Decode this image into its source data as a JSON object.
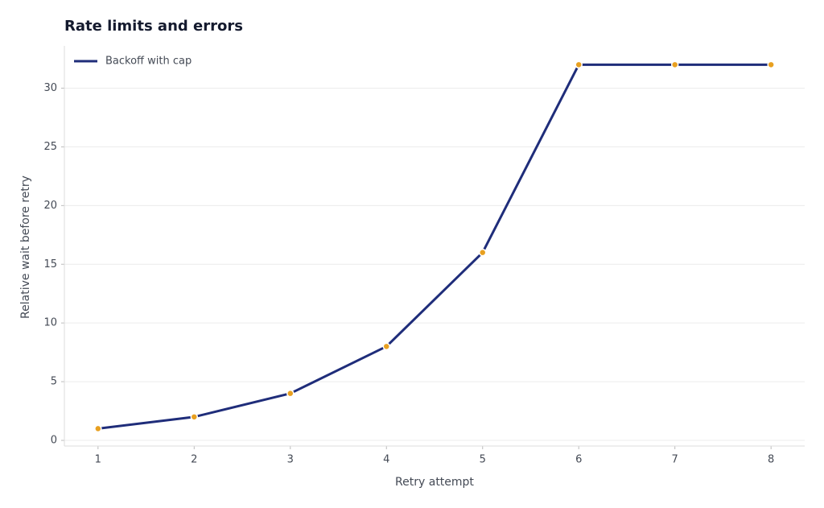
{
  "chart_data": {
    "type": "line",
    "title": "Rate limits and errors",
    "x_label": "Retry attempt",
    "y_label": "Relative wait before retry",
    "x": [
      1,
      2,
      3,
      4,
      5,
      6,
      7,
      8
    ],
    "series": [
      {
        "name": "Backoff with cap",
        "color": "#1f2d7a",
        "marker_color": "#e8a020",
        "values": [
          1,
          2,
          4,
          8,
          16,
          32,
          32,
          32
        ]
      }
    ],
    "xlim": [
      0.65,
      8.35
    ],
    "xticks": [
      1,
      2,
      3,
      4,
      5,
      6,
      7,
      8
    ],
    "ylim": [
      -0.48,
      33.6
    ],
    "yticks": [
      0,
      5,
      10,
      15,
      20,
      25,
      30
    ],
    "grid": true,
    "legend": "upper-left"
  }
}
